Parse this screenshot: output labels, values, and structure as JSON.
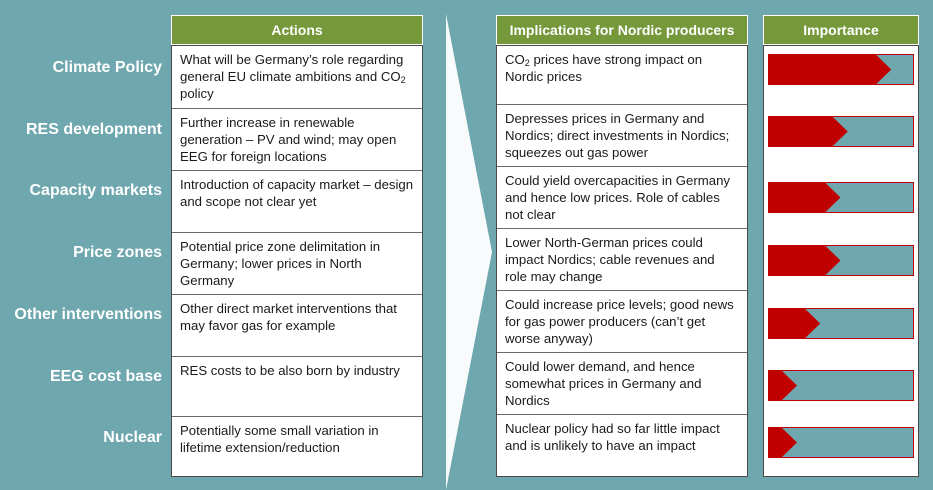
{
  "headers": {
    "actions": "Actions",
    "implications": "Implications for Nordic producers",
    "importance": "Importance"
  },
  "rows": [
    {
      "label": "Climate Policy",
      "action_parts": [
        "What will be Germany’s role regarding general EU climate ambitions and CO",
        "2",
        " policy"
      ],
      "implication_parts": [
        "CO",
        "2",
        " prices have strong impact on Nordic prices"
      ],
      "importance": 0.85
    },
    {
      "label": "RES development",
      "action_parts": [
        "Further increase in renewable generation – PV and wind; may open EEG for foreign locations"
      ],
      "implication_parts": [
        "Depresses prices in Germany and Nordics; direct investments in Nordics; squeezes out gas power"
      ],
      "importance": 0.55
    },
    {
      "label": "Capacity markets",
      "action_parts": [
        "Introduction of capacity market – design and scope not clear yet"
      ],
      "implication_parts": [
        "Could yield overcapacities in Germany and hence low prices. Role of cables not clear"
      ],
      "importance": 0.5
    },
    {
      "label": "Price zones",
      "action_parts": [
        "Potential price zone delimitation in Germany; lower prices in North Germany"
      ],
      "implication_parts": [
        "Lower North-German prices could impact Nordics; cable revenues and role may change"
      ],
      "importance": 0.5
    },
    {
      "label": "Other interventions",
      "action_parts": [
        "Other direct market interventions that may favor gas for example"
      ],
      "implication_parts": [
        "Could increase price levels; good news for gas power producers (can’t get worse anyway)"
      ],
      "importance": 0.36
    },
    {
      "label": "EEG cost base",
      "action_parts": [
        "RES costs to be also born by industry"
      ],
      "implication_parts": [
        "Could lower demand, and hence somewhat  prices in Germany and Nordics"
      ],
      "importance": 0.2
    },
    {
      "label": "Nuclear",
      "action_parts": [
        "Potentially some small variation in lifetime extension/reduction"
      ],
      "implication_parts": [
        "Nuclear policy had so far little impact and is unlikely to have an impact"
      ],
      "importance": 0.2
    }
  ],
  "colors": {
    "background": "#6fa7ae",
    "header": "#75983a",
    "bar_track": "#6fa7ae",
    "bar_fill": "#c00000"
  }
}
